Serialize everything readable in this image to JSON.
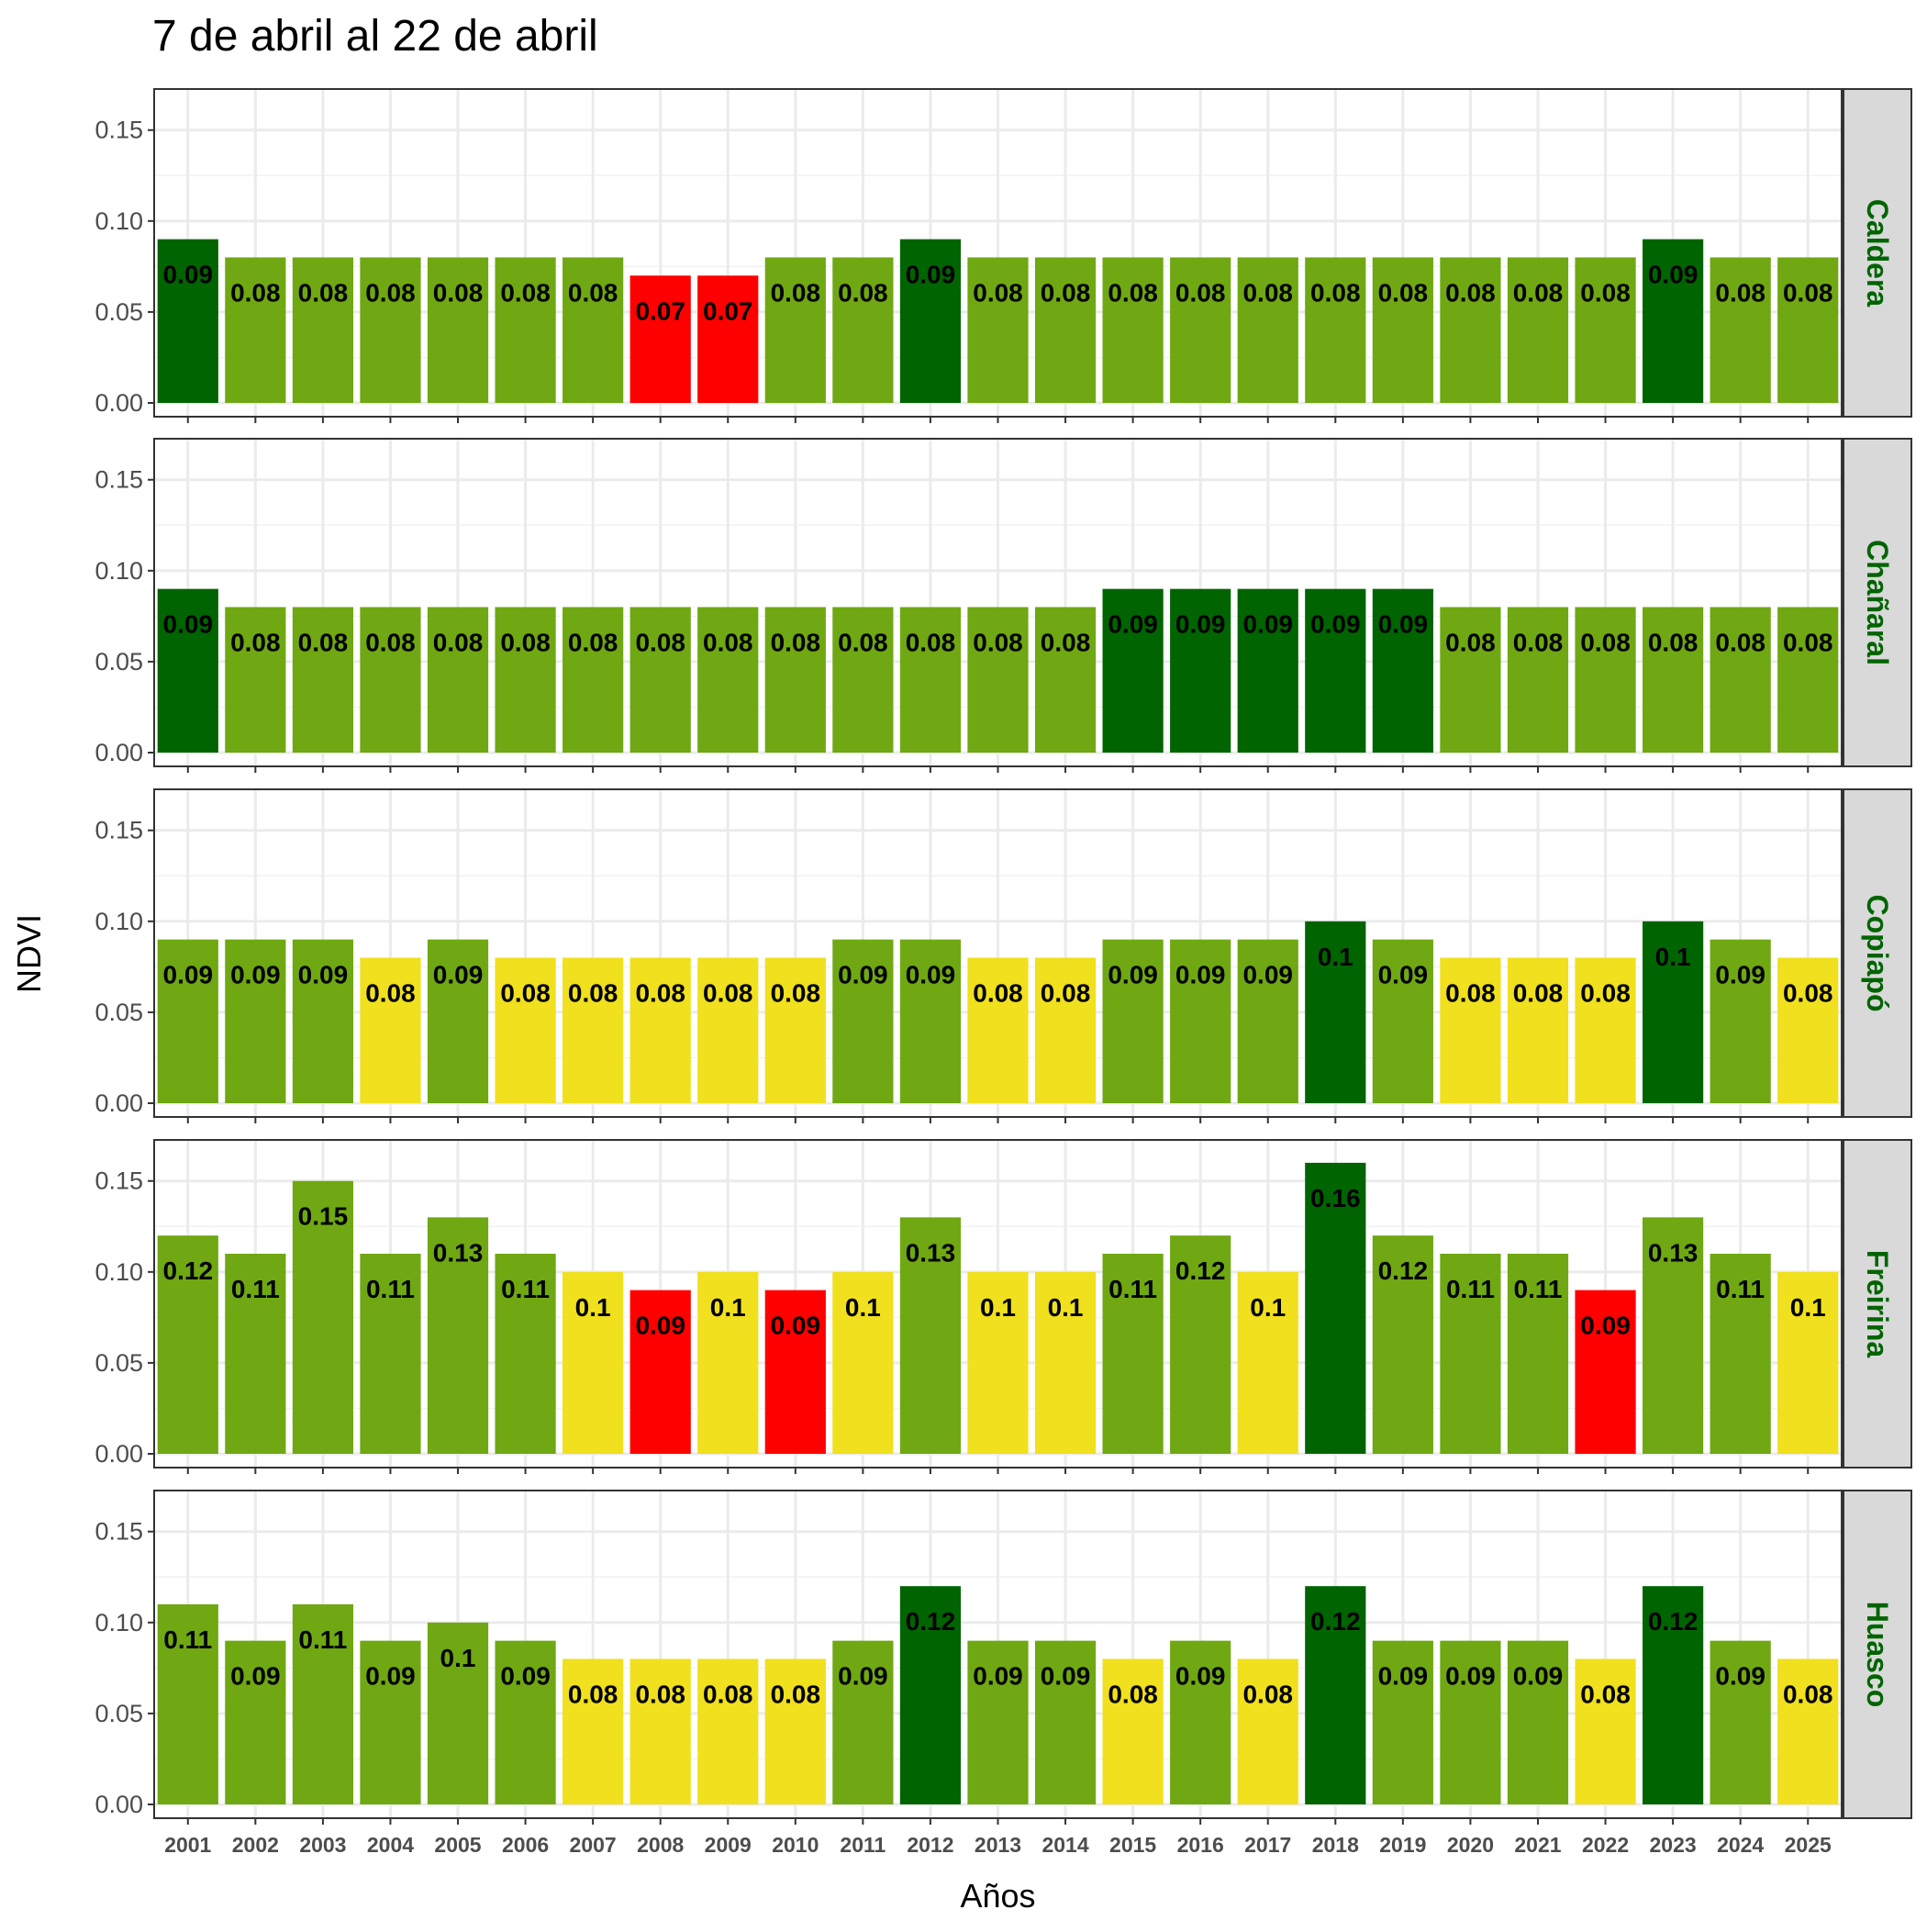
{
  "chart_data": {
    "type": "bar",
    "title": "7 de abril al 22 de abril",
    "xlabel": "Años",
    "ylabel": "NDVI",
    "ylim": [
      0,
      0.165
    ],
    "yticks": [
      "0.00",
      "0.05",
      "0.10",
      "0.15"
    ],
    "ytick_values": [
      0,
      0.05,
      0.1,
      0.15
    ],
    "grid": true,
    "categories": [
      "2001",
      "2002",
      "2003",
      "2004",
      "2005",
      "2006",
      "2007",
      "2008",
      "2009",
      "2010",
      "2011",
      "2012",
      "2013",
      "2014",
      "2015",
      "2016",
      "2017",
      "2018",
      "2019",
      "2020",
      "2021",
      "2022",
      "2023",
      "2024",
      "2025"
    ],
    "colors": {
      "dark_green": "#006400",
      "green": "#6fa812",
      "yellow": "#f0e01d",
      "red": "#ff0000",
      "strip_bg": "#d9d9d9",
      "strip_text": "#006400",
      "grid": "#ebebeb"
    },
    "panels": [
      {
        "name": "Caldera",
        "values": [
          0.09,
          0.08,
          0.08,
          0.08,
          0.08,
          0.08,
          0.08,
          0.07,
          0.07,
          0.08,
          0.08,
          0.09,
          0.08,
          0.08,
          0.08,
          0.08,
          0.08,
          0.08,
          0.08,
          0.08,
          0.08,
          0.08,
          0.09,
          0.08,
          0.08
        ],
        "labels": [
          "0.09",
          "0.08",
          "0.08",
          "0.08",
          "0.08",
          "0.08",
          "0.08",
          "0.07",
          "0.07",
          "0.08",
          "0.08",
          "0.09",
          "0.08",
          "0.08",
          "0.08",
          "0.08",
          "0.08",
          "0.08",
          "0.08",
          "0.08",
          "0.08",
          "0.08",
          "0.09",
          "0.08",
          "0.08"
        ],
        "bar_colors": [
          "dark_green",
          "green",
          "green",
          "green",
          "green",
          "green",
          "green",
          "red",
          "red",
          "green",
          "green",
          "dark_green",
          "green",
          "green",
          "green",
          "green",
          "green",
          "green",
          "green",
          "green",
          "green",
          "green",
          "dark_green",
          "green",
          "green"
        ]
      },
      {
        "name": "Chañaral",
        "values": [
          0.09,
          0.08,
          0.08,
          0.08,
          0.08,
          0.08,
          0.08,
          0.08,
          0.08,
          0.08,
          0.08,
          0.08,
          0.08,
          0.08,
          0.09,
          0.09,
          0.09,
          0.09,
          0.09,
          0.08,
          0.08,
          0.08,
          0.08,
          0.08,
          0.08
        ],
        "labels": [
          "0.09",
          "0.08",
          "0.08",
          "0.08",
          "0.08",
          "0.08",
          "0.08",
          "0.08",
          "0.08",
          "0.08",
          "0.08",
          "0.08",
          "0.08",
          "0.08",
          "0.09",
          "0.09",
          "0.09",
          "0.09",
          "0.09",
          "0.08",
          "0.08",
          "0.08",
          "0.08",
          "0.08",
          "0.08"
        ],
        "bar_colors": [
          "dark_green",
          "green",
          "green",
          "green",
          "green",
          "green",
          "green",
          "green",
          "green",
          "green",
          "green",
          "green",
          "green",
          "green",
          "dark_green",
          "dark_green",
          "dark_green",
          "dark_green",
          "dark_green",
          "green",
          "green",
          "green",
          "green",
          "green",
          "green"
        ]
      },
      {
        "name": "Copiapó",
        "values": [
          0.09,
          0.09,
          0.09,
          0.08,
          0.09,
          0.08,
          0.08,
          0.08,
          0.08,
          0.08,
          0.09,
          0.09,
          0.08,
          0.08,
          0.09,
          0.09,
          0.09,
          0.1,
          0.09,
          0.08,
          0.08,
          0.08,
          0.1,
          0.09,
          0.08
        ],
        "labels": [
          "0.09",
          "0.09",
          "0.09",
          "0.08",
          "0.09",
          "0.08",
          "0.08",
          "0.08",
          "0.08",
          "0.08",
          "0.09",
          "0.09",
          "0.08",
          "0.08",
          "0.09",
          "0.09",
          "0.09",
          "0.1",
          "0.09",
          "0.08",
          "0.08",
          "0.08",
          "0.1",
          "0.09",
          "0.08"
        ],
        "bar_colors": [
          "green",
          "green",
          "green",
          "yellow",
          "green",
          "yellow",
          "yellow",
          "yellow",
          "yellow",
          "yellow",
          "green",
          "green",
          "yellow",
          "yellow",
          "green",
          "green",
          "green",
          "dark_green",
          "green",
          "yellow",
          "yellow",
          "yellow",
          "dark_green",
          "green",
          "yellow"
        ]
      },
      {
        "name": "Freirina",
        "values": [
          0.12,
          0.11,
          0.15,
          0.11,
          0.13,
          0.11,
          0.1,
          0.09,
          0.1,
          0.09,
          0.1,
          0.13,
          0.1,
          0.1,
          0.11,
          0.12,
          0.1,
          0.16,
          0.12,
          0.11,
          0.11,
          0.09,
          0.13,
          0.11,
          0.1
        ],
        "labels": [
          "0.12",
          "0.11",
          "0.15",
          "0.11",
          "0.13",
          "0.11",
          "0.1",
          "0.09",
          "0.1",
          "0.09",
          "0.1",
          "0.13",
          "0.1",
          "0.1",
          "0.11",
          "0.12",
          "0.1",
          "0.16",
          "0.12",
          "0.11",
          "0.11",
          "0.09",
          "0.13",
          "0.11",
          "0.1"
        ],
        "bar_colors": [
          "green",
          "green",
          "green",
          "green",
          "green",
          "green",
          "yellow",
          "red",
          "yellow",
          "red",
          "yellow",
          "green",
          "yellow",
          "yellow",
          "green",
          "green",
          "yellow",
          "dark_green",
          "green",
          "green",
          "green",
          "red",
          "green",
          "green",
          "yellow"
        ]
      },
      {
        "name": "Huasco",
        "values": [
          0.11,
          0.09,
          0.11,
          0.09,
          0.1,
          0.09,
          0.08,
          0.08,
          0.08,
          0.08,
          0.09,
          0.12,
          0.09,
          0.09,
          0.08,
          0.09,
          0.08,
          0.12,
          0.09,
          0.09,
          0.09,
          0.08,
          0.12,
          0.09,
          0.08
        ],
        "labels": [
          "0.11",
          "0.09",
          "0.11",
          "0.09",
          "0.1",
          "0.09",
          "0.08",
          "0.08",
          "0.08",
          "0.08",
          "0.09",
          "0.12",
          "0.09",
          "0.09",
          "0.08",
          "0.09",
          "0.08",
          "0.12",
          "0.09",
          "0.09",
          "0.09",
          "0.08",
          "0.12",
          "0.09",
          "0.08"
        ],
        "bar_colors": [
          "green",
          "green",
          "green",
          "green",
          "green",
          "green",
          "yellow",
          "yellow",
          "yellow",
          "yellow",
          "green",
          "dark_green",
          "green",
          "green",
          "yellow",
          "green",
          "yellow",
          "dark_green",
          "green",
          "green",
          "green",
          "yellow",
          "dark_green",
          "green",
          "yellow"
        ]
      }
    ]
  }
}
